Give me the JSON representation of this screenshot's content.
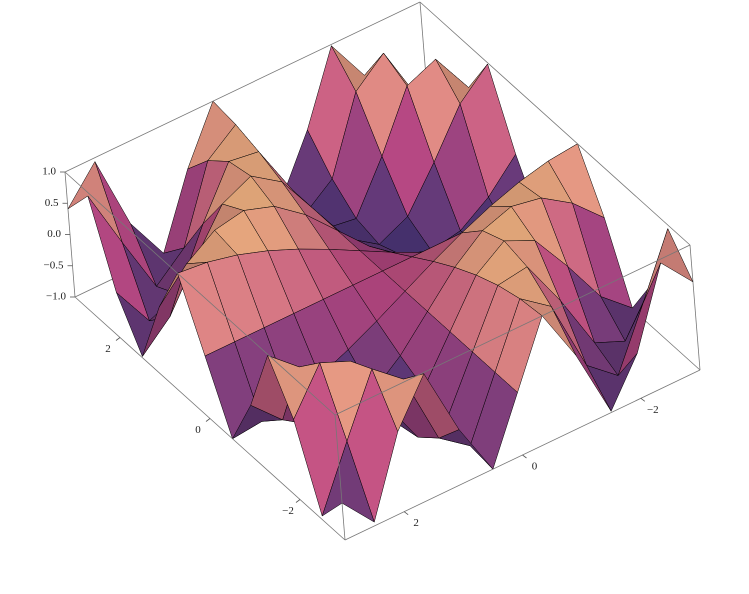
{
  "chart_data": {
    "type": "surface",
    "x": [
      -3,
      -2.5,
      -2,
      -1.5,
      -1,
      -0.5,
      0,
      0.5,
      1,
      1.5,
      2,
      2.5,
      3
    ],
    "y": [
      -3,
      -2.5,
      -2,
      -1.5,
      -1,
      -0.5,
      0,
      0.5,
      1,
      1.5,
      2,
      2.5,
      3
    ],
    "z": [
      [
        0.41,
        0.94,
        -0.28,
        -0.98,
        0.14,
        1.0,
        0,
        -1.0,
        -0.14,
        0.98,
        0.28,
        -0.94,
        -0.41
      ],
      [
        0.94,
        -0.03,
        -0.96,
        -0.57,
        0.6,
        0.95,
        0,
        -0.95,
        -0.6,
        0.57,
        0.96,
        0.03,
        -0.94
      ],
      [
        -0.28,
        -0.96,
        -0.76,
        0.14,
        0.91,
        0.84,
        0,
        -0.84,
        -0.91,
        -0.14,
        0.76,
        0.96,
        0.28
      ],
      [
        -0.98,
        -0.57,
        0.14,
        0.78,
        1.0,
        0.68,
        0,
        -0.68,
        -1.0,
        -0.78,
        -0.14,
        0.57,
        0.98
      ],
      [
        0.14,
        0.6,
        0.91,
        1.0,
        0.84,
        0.48,
        0,
        -0.48,
        -0.84,
        -1.0,
        -0.91,
        -0.6,
        -0.14
      ],
      [
        1.0,
        0.95,
        0.84,
        0.68,
        0.48,
        0.25,
        0,
        -0.25,
        -0.48,
        -0.68,
        -0.84,
        -0.95,
        -1.0
      ],
      [
        0,
        0,
        0,
        0,
        0,
        0,
        0,
        0,
        0,
        0,
        0,
        0,
        0
      ],
      [
        -1.0,
        -0.95,
        -0.84,
        -0.68,
        -0.48,
        -0.25,
        0,
        0.25,
        0.48,
        0.68,
        0.84,
        0.95,
        1.0
      ],
      [
        -0.14,
        -0.6,
        -0.91,
        -1.0,
        -0.84,
        -0.48,
        0,
        0.48,
        0.84,
        1.0,
        0.91,
        0.6,
        0.14
      ],
      [
        0.98,
        0.57,
        -0.14,
        -0.78,
        -1.0,
        -0.68,
        0,
        0.68,
        1.0,
        0.78,
        0.14,
        -0.57,
        -0.98
      ],
      [
        0.28,
        0.96,
        0.76,
        -0.14,
        -0.91,
        -0.84,
        0,
        0.84,
        0.91,
        0.14,
        -0.76,
        -0.96,
        -0.28
      ],
      [
        -0.94,
        0.03,
        0.96,
        0.57,
        -0.6,
        -0.95,
        0,
        0.95,
        0.6,
        -0.57,
        -0.96,
        -0.03,
        0.94
      ],
      [
        -0.41,
        -0.94,
        0.28,
        0.98,
        -0.14,
        -1.0,
        0,
        1.0,
        0.14,
        -0.98,
        -0.28,
        0.94,
        0.41
      ]
    ],
    "xlim": [
      -3,
      3
    ],
    "ylim": [
      -3,
      3
    ],
    "zlim": [
      -1,
      1
    ],
    "xticks": [
      {
        "value": -2,
        "label": "−2"
      },
      0,
      2
    ],
    "yticks": [
      {
        "value": -2,
        "label": "−2"
      },
      0,
      2
    ],
    "zticks": [
      {
        "value": 1,
        "label": "1.0"
      },
      {
        "value": 0.5,
        "label": "0.5"
      },
      {
        "value": 0,
        "label": "0.0"
      },
      {
        "value": -0.5,
        "label": "−0.5"
      },
      {
        "value": -1,
        "label": "−1.0"
      }
    ],
    "colors": [
      "#3f3273",
      "#b8477f",
      "#f7bd82"
    ],
    "mesh": true
  }
}
